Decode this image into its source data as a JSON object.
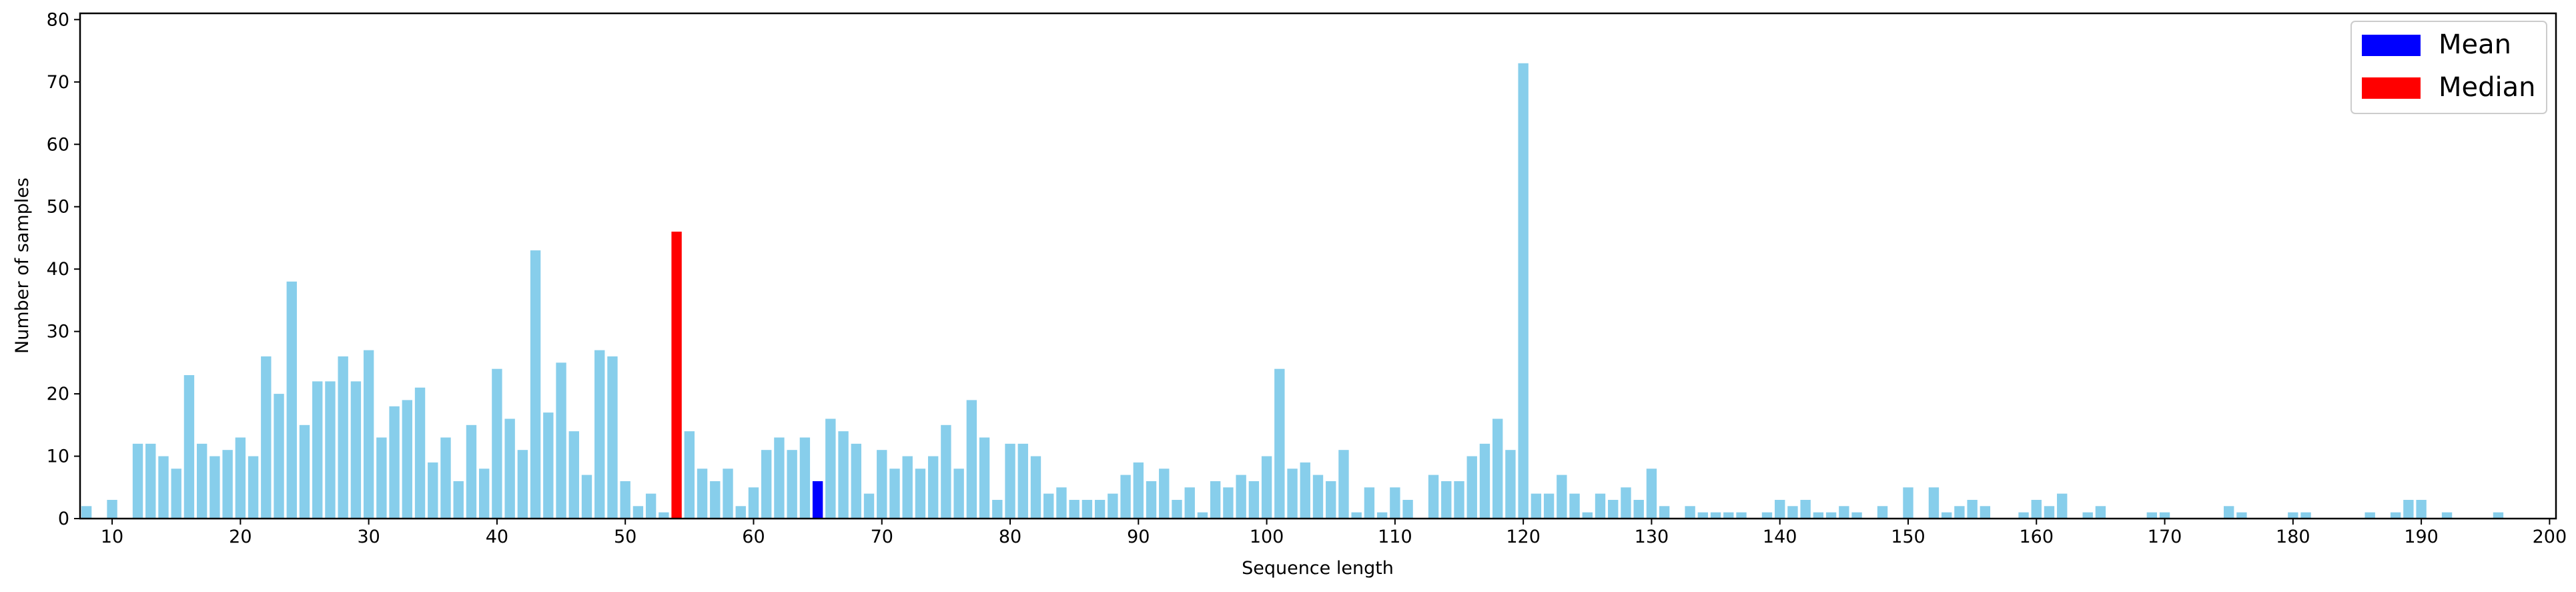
{
  "chart_data": {
    "type": "bar",
    "xlabel": "Sequence length",
    "ylabel": "Number of samples",
    "xlim": [
      7.5,
      200.5
    ],
    "ylim": [
      0,
      81
    ],
    "xticks": [
      10,
      20,
      30,
      40,
      50,
      60,
      70,
      80,
      90,
      100,
      110,
      120,
      130,
      140,
      150,
      160,
      170,
      180,
      190,
      200
    ],
    "yticks": [
      0,
      10,
      20,
      30,
      40,
      50,
      60,
      70,
      80
    ],
    "grid": false,
    "legend_position": "top-right",
    "colors": {
      "default": "#87ceeb",
      "mean": "#0000ff",
      "median": "#ff0000"
    },
    "series": [
      {
        "name": "Mean",
        "color": "#0000ff",
        "x": [
          65
        ],
        "values": [
          6
        ]
      },
      {
        "name": "Median",
        "color": "#ff0000",
        "x": [
          54
        ],
        "values": [
          46
        ]
      }
    ],
    "x": [
      8,
      10,
      12,
      13,
      14,
      15,
      16,
      17,
      18,
      19,
      20,
      21,
      22,
      23,
      24,
      25,
      26,
      27,
      28,
      29,
      30,
      31,
      32,
      33,
      34,
      35,
      36,
      37,
      38,
      39,
      40,
      41,
      42,
      43,
      44,
      45,
      46,
      47,
      48,
      49,
      50,
      51,
      52,
      53,
      54,
      55,
      56,
      57,
      58,
      59,
      60,
      61,
      62,
      63,
      64,
      65,
      66,
      67,
      68,
      69,
      70,
      71,
      72,
      73,
      74,
      75,
      76,
      77,
      78,
      79,
      80,
      81,
      82,
      83,
      84,
      85,
      86,
      87,
      88,
      89,
      90,
      91,
      92,
      93,
      94,
      95,
      96,
      97,
      98,
      99,
      100,
      101,
      102,
      103,
      104,
      105,
      106,
      107,
      108,
      109,
      110,
      111,
      113,
      114,
      115,
      116,
      117,
      118,
      119,
      120,
      121,
      122,
      123,
      124,
      125,
      126,
      127,
      128,
      129,
      130,
      131,
      133,
      134,
      135,
      136,
      137,
      139,
      140,
      141,
      142,
      143,
      144,
      145,
      146,
      148,
      150,
      152,
      153,
      154,
      155,
      156,
      159,
      160,
      161,
      162,
      164,
      165,
      169,
      170,
      175,
      176,
      180,
      181,
      186,
      188,
      189,
      190,
      192,
      196
    ],
    "values": [
      2,
      3,
      12,
      12,
      10,
      8,
      23,
      12,
      10,
      11,
      13,
      10,
      26,
      20,
      38,
      15,
      22,
      22,
      26,
      22,
      27,
      13,
      18,
      19,
      21,
      9,
      13,
      6,
      15,
      8,
      24,
      16,
      11,
      43,
      17,
      25,
      14,
      7,
      27,
      26,
      6,
      2,
      4,
      1,
      46,
      14,
      8,
      6,
      8,
      2,
      5,
      11,
      13,
      11,
      13,
      6,
      16,
      14,
      12,
      4,
      11,
      8,
      10,
      8,
      10,
      15,
      8,
      19,
      13,
      3,
      12,
      12,
      10,
      4,
      5,
      3,
      3,
      3,
      4,
      7,
      9,
      6,
      8,
      3,
      5,
      1,
      6,
      5,
      7,
      6,
      10,
      24,
      8,
      9,
      7,
      6,
      11,
      1,
      5,
      1,
      5,
      3,
      7,
      6,
      6,
      10,
      12,
      16,
      11,
      73,
      4,
      4,
      7,
      4,
      1,
      4,
      3,
      5,
      3,
      8,
      2,
      2,
      1,
      1,
      1,
      1,
      1,
      3,
      2,
      3,
      1,
      1,
      2,
      1,
      2,
      5,
      5,
      1,
      2,
      3,
      2,
      1,
      3,
      2,
      4,
      1,
      2,
      1,
      1,
      2,
      1,
      1,
      1,
      1,
      1,
      3,
      3,
      1,
      1
    ]
  }
}
